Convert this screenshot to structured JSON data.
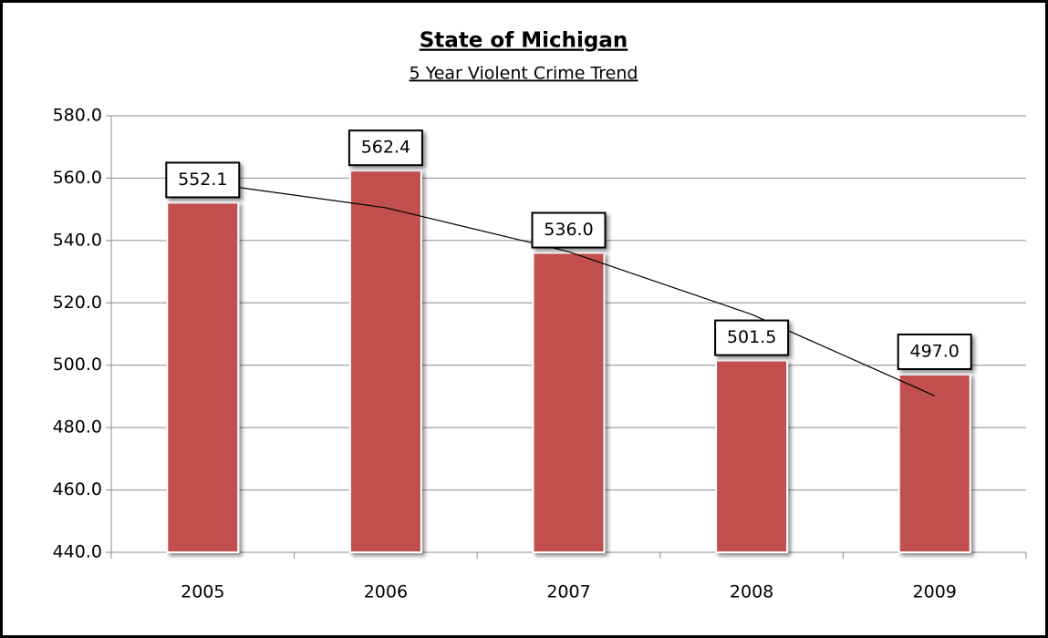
{
  "chart_data": {
    "type": "bar",
    "title": "State of Michigan",
    "subtitle": "5 Year Violent Crime Trend",
    "categories": [
      "2005",
      "2006",
      "2007",
      "2008",
      "2009"
    ],
    "values": [
      552.1,
      562.4,
      536.0,
      501.5,
      497.0
    ],
    "value_labels": [
      "552.1",
      "562.4",
      "536.0",
      "501.5",
      "497.0"
    ],
    "color": "#c0504d",
    "trendline": {
      "color": "#000000",
      "values": [
        558.6,
        550.5,
        536.4,
        516.3,
        490.2
      ]
    },
    "ylim": [
      440,
      580
    ],
    "yticks": [
      {
        "value": 440,
        "label": "440.0"
      },
      {
        "value": 460,
        "label": "460.0"
      },
      {
        "value": 480,
        "label": "480.0"
      },
      {
        "value": 500,
        "label": "500.0"
      },
      {
        "value": 520,
        "label": "520.0"
      },
      {
        "value": 540,
        "label": "540.0"
      },
      {
        "value": 560,
        "label": "560.0"
      },
      {
        "value": 580,
        "label": "580.0"
      }
    ],
    "grid": true
  }
}
